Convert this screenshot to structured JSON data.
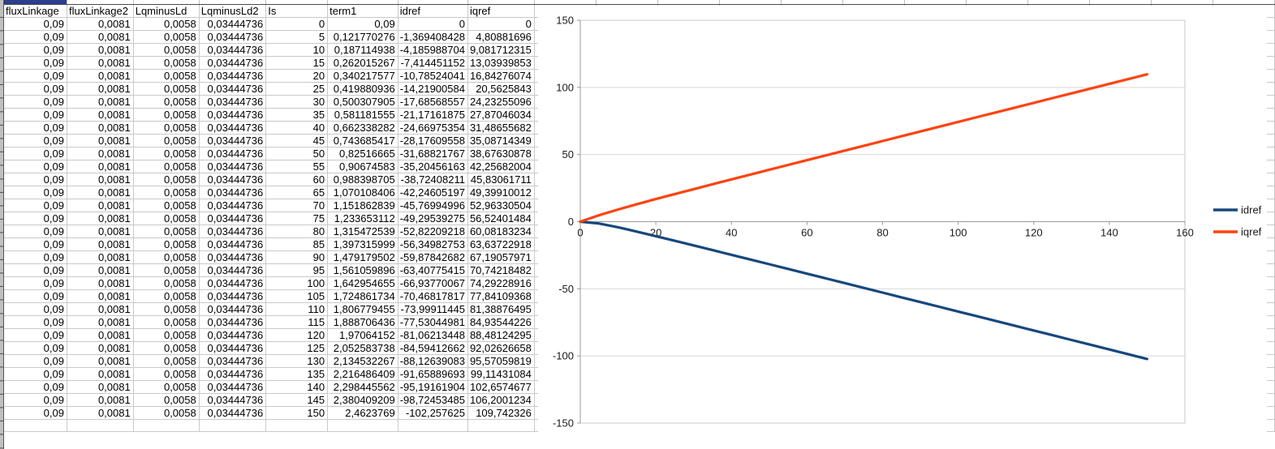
{
  "spreadsheet": {
    "columns": [
      "fluxLinkage",
      "fluxLinkage2",
      "LqminusLd",
      "LqminusLd2",
      "Is",
      "term1",
      "idref",
      "iqref"
    ],
    "rows": [
      [
        "0,09",
        "0,0081",
        "0,0058",
        "0,03444736",
        "0",
        "0,09",
        "0",
        "0"
      ],
      [
        "0,09",
        "0,0081",
        "0,0058",
        "0,03444736",
        "5",
        "0,121770276",
        "-1,369408428",
        "4,80881696"
      ],
      [
        "0,09",
        "0,0081",
        "0,0058",
        "0,03444736",
        "10",
        "0,187114938",
        "-4,185988704",
        "9,081712315"
      ],
      [
        "0,09",
        "0,0081",
        "0,0058",
        "0,03444736",
        "15",
        "0,262015267",
        "-7,414451152",
        "13,03939853"
      ],
      [
        "0,09",
        "0,0081",
        "0,0058",
        "0,03444736",
        "20",
        "0,340217577",
        "-10,78524041",
        "16,84276074"
      ],
      [
        "0,09",
        "0,0081",
        "0,0058",
        "0,03444736",
        "25",
        "0,419880936",
        "-14,21900584",
        "20,5625843"
      ],
      [
        "0,09",
        "0,0081",
        "0,0058",
        "0,03444736",
        "30",
        "0,500307905",
        "-17,68568557",
        "24,23255096"
      ],
      [
        "0,09",
        "0,0081",
        "0,0058",
        "0,03444736",
        "35",
        "0,581181555",
        "-21,17161875",
        "27,87046034"
      ],
      [
        "0,09",
        "0,0081",
        "0,0058",
        "0,03444736",
        "40",
        "0,662338282",
        "-24,66975354",
        "31,48655682"
      ],
      [
        "0,09",
        "0,0081",
        "0,0058",
        "0,03444736",
        "45",
        "0,743685417",
        "-28,17609558",
        "35,08714349"
      ],
      [
        "0,09",
        "0,0081",
        "0,0058",
        "0,03444736",
        "50",
        "0,82516665",
        "-31,68821767",
        "38,67630878"
      ],
      [
        "0,09",
        "0,0081",
        "0,0058",
        "0,03444736",
        "55",
        "0,90674583",
        "-35,20456163",
        "42,25682004"
      ],
      [
        "0,09",
        "0,0081",
        "0,0058",
        "0,03444736",
        "60",
        "0,988398705",
        "-38,72408211",
        "45,83061711"
      ],
      [
        "0,09",
        "0,0081",
        "0,0058",
        "0,03444736",
        "65",
        "1,070108406",
        "-42,24605197",
        "49,39910012"
      ],
      [
        "0,09",
        "0,0081",
        "0,0058",
        "0,03444736",
        "70",
        "1,151862839",
        "-45,76994996",
        "52,96330504"
      ],
      [
        "0,09",
        "0,0081",
        "0,0058",
        "0,03444736",
        "75",
        "1,233653112",
        "-49,29539275",
        "56,52401484"
      ],
      [
        "0,09",
        "0,0081",
        "0,0058",
        "0,03444736",
        "80",
        "1,315472539",
        "-52,82209218",
        "60,08183234"
      ],
      [
        "0,09",
        "0,0081",
        "0,0058",
        "0,03444736",
        "85",
        "1,397315999",
        "-56,34982753",
        "63,63722918"
      ],
      [
        "0,09",
        "0,0081",
        "0,0058",
        "0,03444736",
        "90",
        "1,479179502",
        "-59,87842682",
        "67,19057971"
      ],
      [
        "0,09",
        "0,0081",
        "0,0058",
        "0,03444736",
        "95",
        "1,561059896",
        "-63,40775415",
        "70,74218482"
      ],
      [
        "0,09",
        "0,0081",
        "0,0058",
        "0,03444736",
        "100",
        "1,642954655",
        "-66,93770067",
        "74,29228916"
      ],
      [
        "0,09",
        "0,0081",
        "0,0058",
        "0,03444736",
        "105",
        "1,724861734",
        "-70,46817817",
        "77,84109368"
      ],
      [
        "0,09",
        "0,0081",
        "0,0058",
        "0,03444736",
        "110",
        "1,806779455",
        "-73,99911445",
        "81,38876495"
      ],
      [
        "0,09",
        "0,0081",
        "0,0058",
        "0,03444736",
        "115",
        "1,888706436",
        "-77,53044981",
        "84,93544226"
      ],
      [
        "0,09",
        "0,0081",
        "0,0058",
        "0,03444736",
        "120",
        "1,97064152",
        "-81,06213448",
        "88,48124295"
      ],
      [
        "0,09",
        "0,0081",
        "0,0058",
        "0,03444736",
        "125",
        "2,052583738",
        "-84,59412662",
        "92,02626658"
      ],
      [
        "0,09",
        "0,0081",
        "0,0058",
        "0,03444736",
        "130",
        "2,134532267",
        "-88,12639083",
        "95,57059819"
      ],
      [
        "0,09",
        "0,0081",
        "0,0058",
        "0,03444736",
        "135",
        "2,216486409",
        "-91,65889693",
        "99,11431084"
      ],
      [
        "0,09",
        "0,0081",
        "0,0058",
        "0,03444736",
        "140",
        "2,298445562",
        "-95,19161904",
        "102,6574677"
      ],
      [
        "0,09",
        "0,0081",
        "0,0058",
        "0,03444736",
        "145",
        "2,380409209",
        "-98,72453485",
        "106,2001234"
      ],
      [
        "0,09",
        "0,0081",
        "0,0058",
        "0,03444736",
        "150",
        "2,4623769",
        "-102,257625",
        "109,742326"
      ]
    ]
  },
  "colors": {
    "idref": "#17477c",
    "iqref": "#ff420e",
    "gridline": "#d9d9d9",
    "axis": "#9b9b9b",
    "plot_border": "#c8c8c8",
    "selection_highlight": "#2c3e8c"
  },
  "chart_data": {
    "type": "line",
    "x": [
      0,
      5,
      10,
      15,
      20,
      25,
      30,
      35,
      40,
      45,
      50,
      55,
      60,
      65,
      70,
      75,
      80,
      85,
      90,
      95,
      100,
      105,
      110,
      115,
      120,
      125,
      130,
      135,
      140,
      145,
      150
    ],
    "series": [
      {
        "name": "idref",
        "color": "#17477c",
        "values": [
          0,
          -1.369408428,
          -4.185988704,
          -7.414451152,
          -10.78524041,
          -14.21900584,
          -17.68568557,
          -21.17161875,
          -24.66975354,
          -28.17609558,
          -31.68821767,
          -35.20456163,
          -38.72408211,
          -42.24605197,
          -45.76994996,
          -49.29539275,
          -52.82209218,
          -56.34982753,
          -59.87842682,
          -63.40775415,
          -66.93770067,
          -70.46817817,
          -73.99911445,
          -77.53044981,
          -81.06213448,
          -84.59412662,
          -88.12639083,
          -91.65889693,
          -95.19161904,
          -98.72453485,
          -102.257625
        ]
      },
      {
        "name": "iqref",
        "color": "#ff420e",
        "values": [
          0,
          4.80881696,
          9.081712315,
          13.03939853,
          16.84276074,
          20.5625843,
          24.23255096,
          27.87046034,
          31.48655682,
          35.08714349,
          38.67630878,
          42.25682004,
          45.83061711,
          49.39910012,
          52.96330504,
          56.52401484,
          60.08183234,
          63.63722918,
          67.19057971,
          70.74218482,
          74.29228916,
          77.84109368,
          81.38876495,
          84.93544226,
          88.48124295,
          92.02626658,
          95.57059819,
          99.11431084,
          102.6574677,
          106.2001234,
          109.742326
        ]
      }
    ],
    "title": "",
    "xlabel": "",
    "ylabel": "",
    "xlim": [
      0,
      160
    ],
    "ylim": [
      -150,
      150
    ],
    "x_ticks": [
      0,
      20,
      40,
      60,
      80,
      100,
      120,
      140,
      160
    ],
    "y_ticks": [
      150,
      100,
      50,
      0,
      -50,
      -100,
      -150
    ],
    "grid": "horizontal",
    "legend_position": "right"
  }
}
